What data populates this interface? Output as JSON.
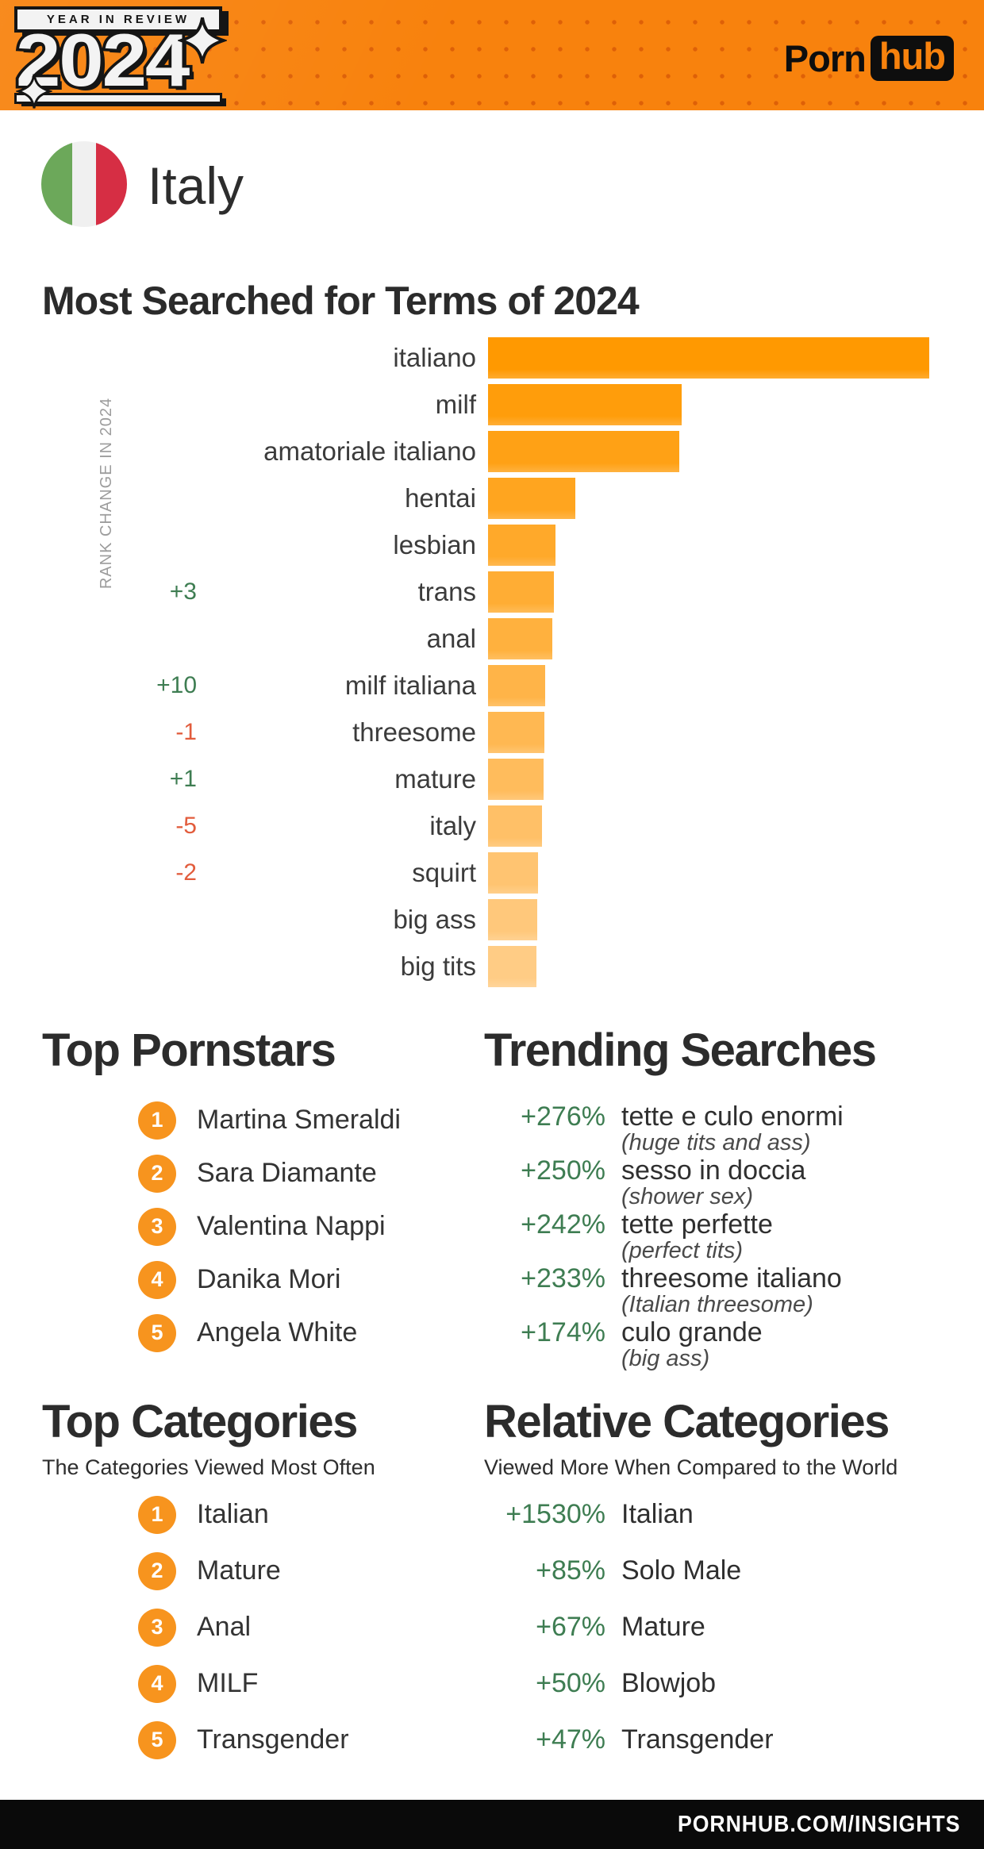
{
  "header": {
    "badge": "YEAR IN REVIEW",
    "year": "2024",
    "brand": {
      "porn": "Porn",
      "hub": "hub"
    }
  },
  "country": {
    "name": "Italy"
  },
  "chart_data": {
    "type": "bar",
    "orientation": "horizontal",
    "title": "Most Searched for Terms of 2024",
    "axis_label": "RANK CHANGE IN 2024",
    "value_note": "relative search volume, longest bar = 100",
    "xlim": [
      0,
      100
    ],
    "bars": [
      {
        "term": "italiano",
        "value": 100,
        "rank_change": "",
        "color": "#FF9901"
      },
      {
        "term": "milf",
        "value": 43.9,
        "rank_change": "",
        "color": "#FF9D0B"
      },
      {
        "term": "amatoriale italiano",
        "value": 43.3,
        "rank_change": "",
        "color": "#FFA115"
      },
      {
        "term": "hentai",
        "value": 19.8,
        "rank_change": "",
        "color": "#FFA51F"
      },
      {
        "term": "lesbian",
        "value": 15.3,
        "rank_change": "",
        "color": "#FFA92A"
      },
      {
        "term": "trans",
        "value": 14.9,
        "rank_change": "+3",
        "color": "#FFAD34"
      },
      {
        "term": "anal",
        "value": 14.6,
        "rank_change": "",
        "color": "#FFB13E"
      },
      {
        "term": "milf italiana",
        "value": 12.9,
        "rank_change": "+10",
        "color": "#FFB448"
      },
      {
        "term": "threesome",
        "value": 12.7,
        "rank_change": "-1",
        "color": "#FFB852"
      },
      {
        "term": "mature",
        "value": 12.6,
        "rank_change": "+1",
        "color": "#FFBC5C"
      },
      {
        "term": "italy",
        "value": 12.2,
        "rank_change": "-5",
        "color": "#FFC067"
      },
      {
        "term": "squirt",
        "value": 11.3,
        "rank_change": "-2",
        "color": "#FFC471"
      },
      {
        "term": "big ass",
        "value": 11.2,
        "rank_change": "",
        "color": "#FFC87B"
      },
      {
        "term": "big tits",
        "value": 11.0,
        "rank_change": "",
        "color": "#FFCC85"
      }
    ]
  },
  "top_pornstars": {
    "title": "Top Pornstars",
    "items": [
      {
        "name": "Martina Smeraldi"
      },
      {
        "name": "Sara Diamante"
      },
      {
        "name": "Valentina Nappi"
      },
      {
        "name": "Danika Mori"
      },
      {
        "name": "Angela White"
      }
    ]
  },
  "trending_searches": {
    "title": "Trending Searches",
    "items": [
      {
        "change": "+276%",
        "term": "tette e culo enormi",
        "translation": "(huge tits and ass)"
      },
      {
        "change": "+250%",
        "term": "sesso in doccia",
        "translation": "(shower sex)"
      },
      {
        "change": "+242%",
        "term": "tette perfette",
        "translation": "(perfect tits)"
      },
      {
        "change": "+233%",
        "term": "threesome italiano",
        "translation": "(Italian threesome)"
      },
      {
        "change": "+174%",
        "term": "culo grande",
        "translation": "(big ass)"
      }
    ]
  },
  "top_categories": {
    "title": "Top Categories",
    "subtitle": "The Categories Viewed Most Often",
    "items": [
      {
        "name": "Italian"
      },
      {
        "name": "Mature"
      },
      {
        "name": "Anal"
      },
      {
        "name": "MILF"
      },
      {
        "name": "Transgender"
      }
    ]
  },
  "relative_categories": {
    "title": "Relative Categories",
    "subtitle": "Viewed More When Compared to the World",
    "items": [
      {
        "change": "+1530%",
        "name": "Italian"
      },
      {
        "change": "+85%",
        "name": "Solo Male"
      },
      {
        "change": "+67%",
        "name": "Mature"
      },
      {
        "change": "+50%",
        "name": "Blowjob"
      },
      {
        "change": "+47%",
        "name": "Transgender"
      }
    ]
  },
  "footer": {
    "url": "PORNHUB.COM/INSIGHTS"
  },
  "colors": {
    "header_orange": "#F8820D",
    "circle_orange": "#F7941E",
    "positive_green": "#3E7D52",
    "negative_red": "#E25C3C",
    "flag_green": "#6CA85A",
    "flag_white": "#F0F0F0",
    "flag_red": "#D62E44",
    "footer_black": "#0A0A0A"
  }
}
